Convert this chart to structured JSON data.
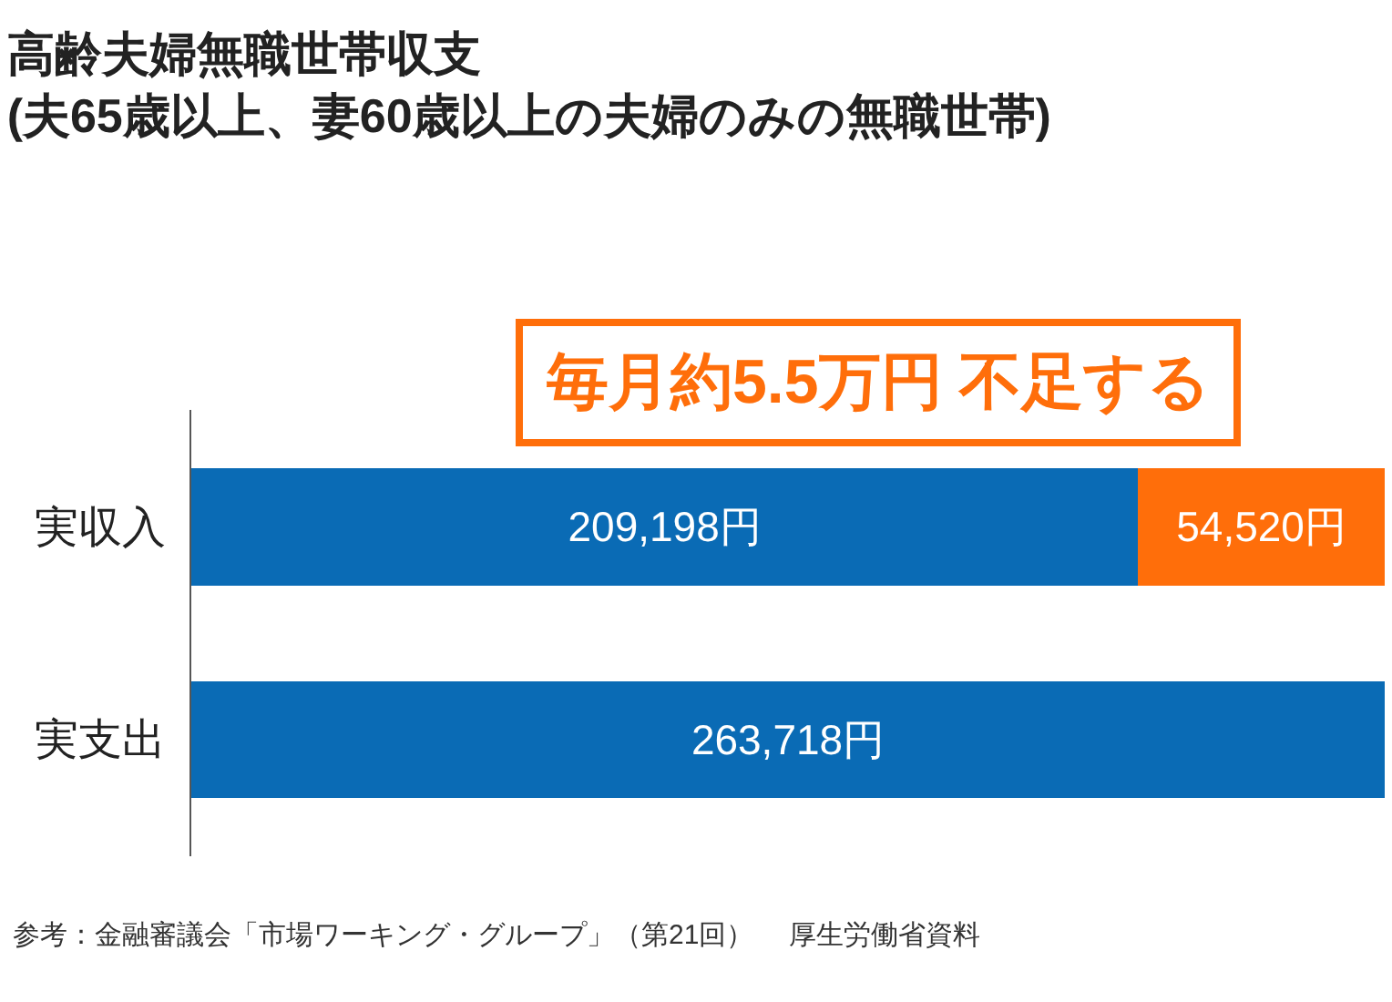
{
  "chart_data": {
    "type": "bar",
    "title": "高齢夫婦無職世帯収支\n(夫65歳以上、妻60歳以上の夫婦のみの無職世帯)",
    "categories": [
      "実収入",
      "実支出"
    ],
    "orientation": "horizontal",
    "stacked": true,
    "xlim": [
      0,
      263718
    ],
    "tick_labels": "y",
    "series": [
      {
        "color": "#0a6bb5",
        "values": [
          209198,
          263718
        ],
        "value_labels": [
          "209,198円",
          "263,718円"
        ]
      },
      {
        "color": "#ff6e0a",
        "values": [
          54520,
          null
        ],
        "value_labels": [
          "54,520円",
          null
        ]
      }
    ],
    "annotations": [
      "毎月約5.5万円 不足する",
      "参考：金融審議会「市場ワーキング・グループ」（第21回）　 厚生労働省資料"
    ]
  }
}
